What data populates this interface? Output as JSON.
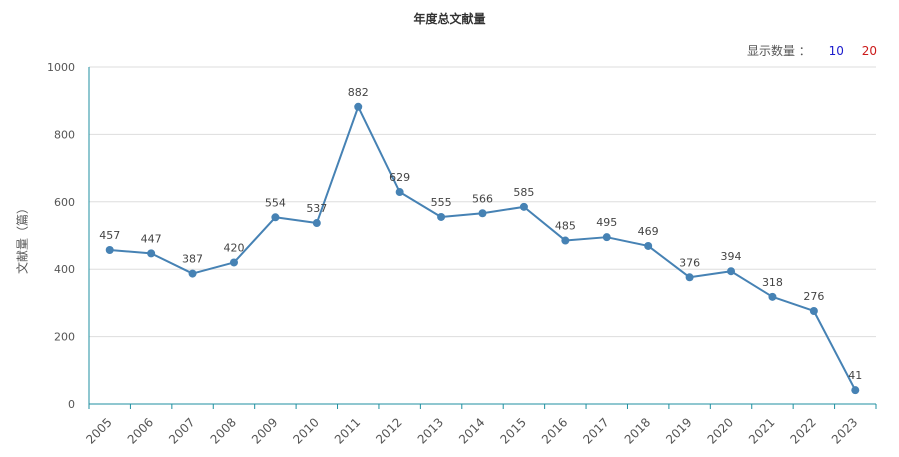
{
  "chart_data": {
    "type": "line",
    "title": "年度总文献量",
    "ylabel": "文献量（篇）",
    "xlabel": "",
    "ylim": [
      0,
      1000
    ],
    "yticks": [
      0,
      200,
      400,
      600,
      800,
      1000
    ],
    "grid": true,
    "categories": [
      "2005",
      "2006",
      "2007",
      "2008",
      "2009",
      "2010",
      "2011",
      "2012",
      "2013",
      "2014",
      "2015",
      "2016",
      "2017",
      "2018",
      "2019",
      "2020",
      "2021",
      "2022",
      "2023"
    ],
    "series": [
      {
        "values": [
          457,
          447,
          387,
          420,
          554,
          537,
          882,
          629,
          555,
          566,
          585,
          485,
          495,
          469,
          376,
          394,
          318,
          276,
          41
        ],
        "color": "#4682b4"
      }
    ]
  },
  "display_count": {
    "label": "显示数量 ：",
    "options": [
      "10",
      "20"
    ]
  },
  "colors": {
    "line": "#4682b4",
    "axis": "#1f8fa0",
    "grid": "#dddddd"
  }
}
